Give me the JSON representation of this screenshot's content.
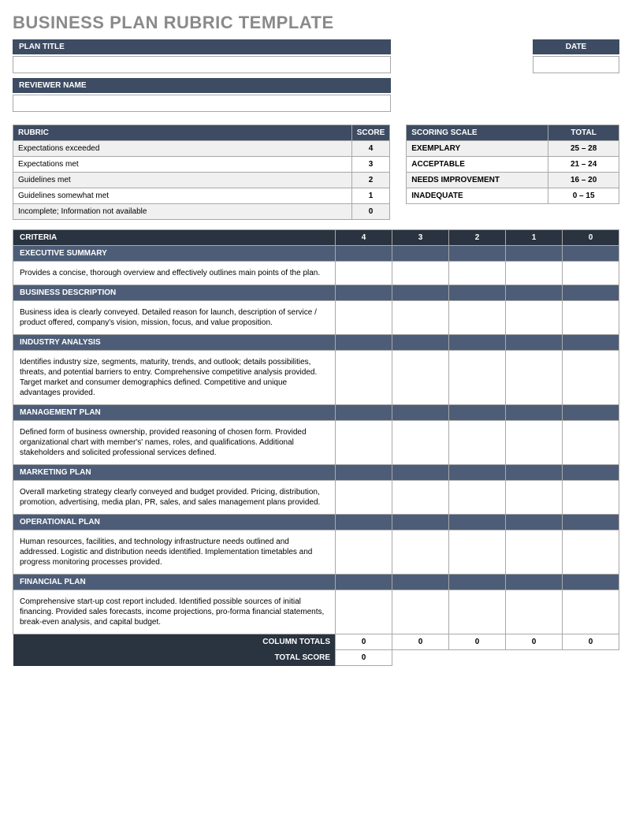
{
  "page_title": "BUSINESS PLAN RUBRIC TEMPLATE",
  "headers": {
    "plan_title": "PLAN TITLE",
    "date": "DATE",
    "reviewer": "REVIEWER NAME"
  },
  "rubric_table": {
    "col_rubric": "RUBRIC",
    "col_score": "SCORE",
    "rows": [
      {
        "label": "Expectations exceeded",
        "score": "4"
      },
      {
        "label": "Expectations met",
        "score": "3"
      },
      {
        "label": "Guidelines met",
        "score": "2"
      },
      {
        "label": "Guidelines somewhat met",
        "score": "1"
      },
      {
        "label": "Incomplete; Information not available",
        "score": "0"
      }
    ]
  },
  "scoring_scale": {
    "col_scale": "SCORING SCALE",
    "col_total": "TOTAL",
    "rows": [
      {
        "label": "EXEMPLARY",
        "range": "25 – 28"
      },
      {
        "label": "ACCEPTABLE",
        "range": "21 – 24"
      },
      {
        "label": "NEEDS IMPROVEMENT",
        "range": "16 – 20"
      },
      {
        "label": "INADEQUATE",
        "range": "0 – 15"
      }
    ]
  },
  "criteria_header": {
    "label": "CRITERIA",
    "cols": [
      "4",
      "3",
      "2",
      "1",
      "0"
    ]
  },
  "criteria": [
    {
      "title": "EXECUTIVE SUMMARY",
      "desc": "Provides a concise, thorough overview and effectively outlines main points of the plan."
    },
    {
      "title": "BUSINESS DESCRIPTION",
      "desc": "Business idea is clearly conveyed. Detailed reason for launch, description of service / product offered, company's vision, mission, focus, and value proposition."
    },
    {
      "title": "INDUSTRY ANALYSIS",
      "desc": "Identifies industry size, segments, maturity, trends, and outlook; details possibilities, threats, and potential barriers to entry. Comprehensive competitive analysis provided. Target market and consumer demographics defined. Competitive and unique advantages provided.  "
    },
    {
      "title": "MANAGEMENT PLAN",
      "desc": "Defined form of business ownership, provided reasoning of chosen form. Provided organizational chart with member's' names, roles, and qualifications.  Additional stakeholders and solicited professional services defined."
    },
    {
      "title": "MARKETING PLAN",
      "desc": "Overall marketing strategy clearly conveyed and budget provided. Pricing, distribution, promotion, advertising, media plan, PR, sales, and sales management plans provided."
    },
    {
      "title": "OPERATIONAL PLAN",
      "desc": "Human resources, facilities, and technology infrastructure needs outlined and addressed. Logistic and distribution needs identified.  Implementation timetables and progress monitoring processes provided. "
    },
    {
      "title": "FINANCIAL PLAN",
      "desc": "Comprehensive start-up cost report included. Identified possible sources of initial financing.  Provided sales forecasts, income projections, pro-forma financial statements, break-even analysis, and capital budget."
    }
  ],
  "totals": {
    "column_totals_label": "COLUMN TOTALS",
    "column_totals": [
      "0",
      "0",
      "0",
      "0",
      "0"
    ],
    "total_score_label": "TOTAL SCORE",
    "total_score": "0"
  },
  "colors": {
    "title_gray": "#8a8a8a",
    "header_blue": "#3d4c63",
    "dark_blue": "#2a3340",
    "section_blue": "#4d5d77",
    "light_gray": "#f0f0f0",
    "border": "#a8a8a8"
  }
}
